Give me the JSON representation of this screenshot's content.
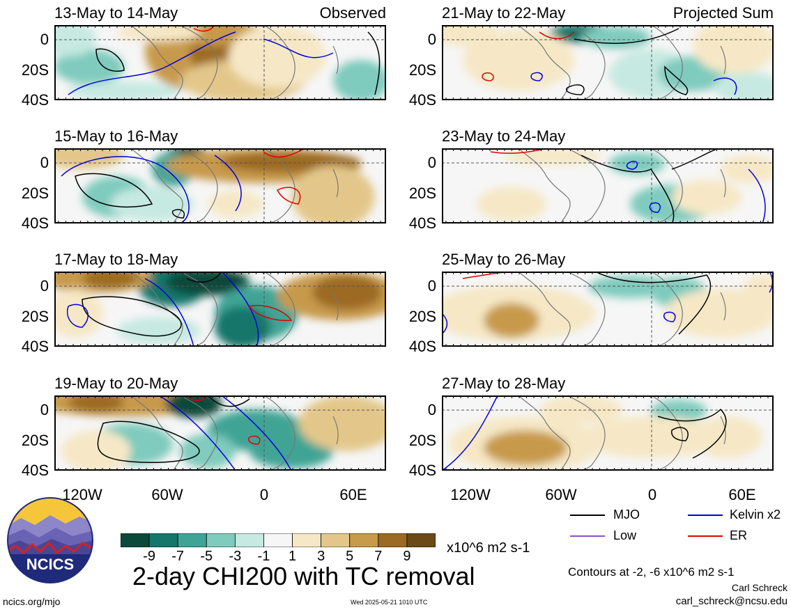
{
  "panels": [
    {
      "title": "13-May to 14-May",
      "corner": "Observed"
    },
    {
      "title": "21-May to 22-May",
      "corner": "Projected Sum"
    },
    {
      "title": "15-May to 16-May",
      "corner": ""
    },
    {
      "title": "23-May to 24-May",
      "corner": ""
    },
    {
      "title": "17-May to 18-May",
      "corner": ""
    },
    {
      "title": "25-May to 26-May",
      "corner": ""
    },
    {
      "title": "19-May to 20-May",
      "corner": ""
    },
    {
      "title": "27-May to 28-May",
      "corner": ""
    }
  ],
  "lat_labels": [
    "0",
    "20S",
    "40S"
  ],
  "lon_labels": [
    "120W",
    "60W",
    "0",
    "60E"
  ],
  "colorbar": {
    "colors": [
      "#0a4a3a",
      "#15766b",
      "#3fa495",
      "#7fcbbd",
      "#c6e9e1",
      "#f6f6f6",
      "#f6e8c6",
      "#e3c78a",
      "#c79a4c",
      "#9c6a24",
      "#6b4a16"
    ],
    "ticks": [
      "-9",
      "-7",
      "-5",
      "-3",
      "-1",
      "1",
      "3",
      "5",
      "7",
      "9"
    ],
    "units": "x10^6 m2 s-1"
  },
  "main_title": "2-day CHI200 with TC removal",
  "legend": [
    {
      "label": "MJO",
      "color": "#000000"
    },
    {
      "label": "Kelvin x2",
      "color": "#0000dd"
    },
    {
      "label": "Low",
      "color": "#8a4fd0"
    },
    {
      "label": "ER",
      "color": "#e00000"
    }
  ],
  "contours_note": "Contours at -2, -6 x10^6 m2 s-1",
  "author": "Carl Schreck",
  "email": "carl_schreck@ncsu.edu",
  "url": "ncics.org/mjo",
  "timestamp": "Wed 2025-05-21 1010 UTC",
  "logo_text": "NCICS"
}
